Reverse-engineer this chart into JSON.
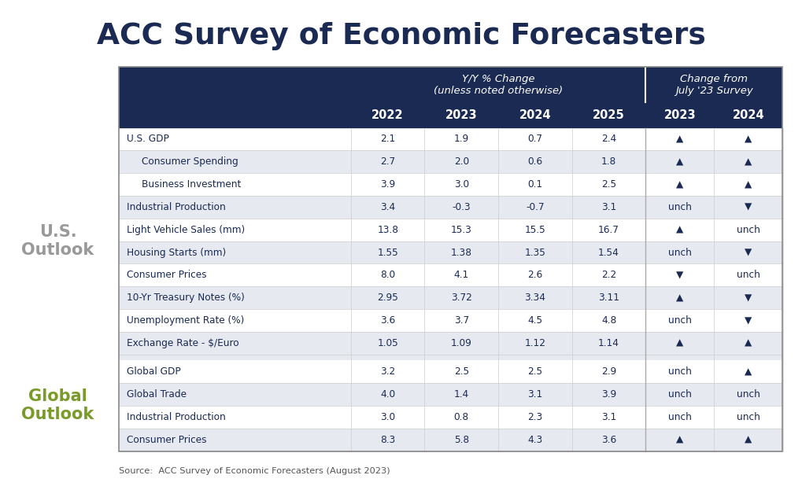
{
  "title": "ACC Survey of Economic Forecasters",
  "source": "Source:  ACC Survey of Economic Forecasters (August 2023)",
  "header_yy_text": "Y/Y % Change\n(unless noted otherwise)",
  "header_chg_text": "Change from\nJuly '23 Survey",
  "col_headers": [
    "2022",
    "2023",
    "2024",
    "2025",
    "2023",
    "2024"
  ],
  "us_label": "U.S.\nOutlook",
  "global_label": "Global\nOutlook",
  "us_label_color": "#999999",
  "global_label_color": "#7a9b2a",
  "rows": [
    {
      "label": "U.S. GDP",
      "indent": 0,
      "vals": [
        "2.1",
        "1.9",
        "0.7",
        "2.4"
      ],
      "chg": [
        "up",
        "up"
      ]
    },
    {
      "label": "Consumer Spending",
      "indent": 1,
      "vals": [
        "2.7",
        "2.0",
        "0.6",
        "1.8"
      ],
      "chg": [
        "up",
        "up"
      ]
    },
    {
      "label": "Business Investment",
      "indent": 1,
      "vals": [
        "3.9",
        "3.0",
        "0.1",
        "2.5"
      ],
      "chg": [
        "up",
        "up"
      ]
    },
    {
      "label": "Industrial Production",
      "indent": 0,
      "vals": [
        "3.4",
        "-0.3",
        "-0.7",
        "3.1"
      ],
      "chg": [
        "unch",
        "down"
      ]
    },
    {
      "label": "Light Vehicle Sales (mm)",
      "indent": 0,
      "vals": [
        "13.8",
        "15.3",
        "15.5",
        "16.7"
      ],
      "chg": [
        "up",
        "unch"
      ]
    },
    {
      "label": "Housing Starts (mm)",
      "indent": 0,
      "vals": [
        "1.55",
        "1.38",
        "1.35",
        "1.54"
      ],
      "chg": [
        "unch",
        "down"
      ]
    },
    {
      "label": "Consumer Prices",
      "indent": 0,
      "vals": [
        "8.0",
        "4.1",
        "2.6",
        "2.2"
      ],
      "chg": [
        "down",
        "unch"
      ]
    },
    {
      "label": "10-Yr Treasury Notes (%)",
      "indent": 0,
      "vals": [
        "2.95",
        "3.72",
        "3.34",
        "3.11"
      ],
      "chg": [
        "up",
        "down"
      ]
    },
    {
      "label": "Unemployment Rate (%)",
      "indent": 0,
      "vals": [
        "3.6",
        "3.7",
        "4.5",
        "4.8"
      ],
      "chg": [
        "unch",
        "down"
      ]
    },
    {
      "label": "Exchange Rate - $/Euro",
      "indent": 0,
      "vals": [
        "1.05",
        "1.09",
        "1.12",
        "1.14"
      ],
      "chg": [
        "up",
        "up"
      ]
    }
  ],
  "global_rows": [
    {
      "label": "Global GDP",
      "indent": 0,
      "vals": [
        "3.2",
        "2.5",
        "2.5",
        "2.9"
      ],
      "chg": [
        "unch",
        "up"
      ]
    },
    {
      "label": "Global Trade",
      "indent": 0,
      "vals": [
        "4.0",
        "1.4",
        "3.1",
        "3.9"
      ],
      "chg": [
        "unch",
        "unch"
      ]
    },
    {
      "label": "Industrial Production",
      "indent": 0,
      "vals": [
        "3.0",
        "0.8",
        "2.3",
        "3.1"
      ],
      "chg": [
        "unch",
        "unch"
      ]
    },
    {
      "label": "Consumer Prices",
      "indent": 0,
      "vals": [
        "8.3",
        "5.8",
        "4.3",
        "3.6"
      ],
      "chg": [
        "up",
        "up"
      ]
    }
  ],
  "header_bg": "#1b2a52",
  "header_text_color": "#ffffff",
  "row_bg_even": "#ffffff",
  "row_bg_odd": "#e6eaf0",
  "cell_text_color": "#1b2a52",
  "title_color": "#1b2a52",
  "source_color": "#555555",
  "table_border_color": "#888888",
  "row_line_color": "#cccccc",
  "bg_color": "#ffffff",
  "col_sep_color": "#ffffff",
  "gap_bg": "#e6eaf0"
}
